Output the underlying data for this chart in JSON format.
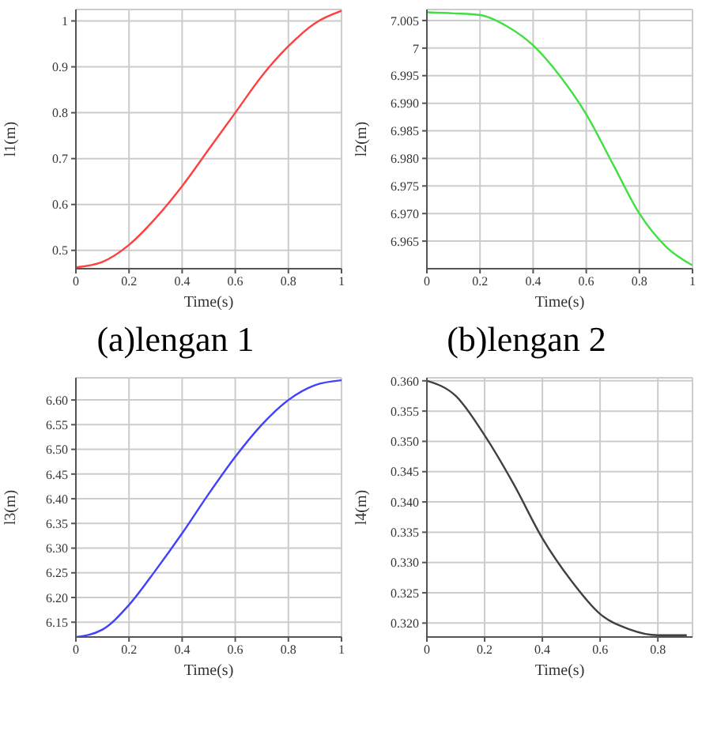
{
  "chart_data": [
    {
      "type": "line",
      "title": "(a)lengan 1",
      "xlabel": "Time(s)",
      "ylabel": "l1(m)",
      "x": [
        0,
        0.1,
        0.2,
        0.3,
        0.4,
        0.5,
        0.6,
        0.7,
        0.8,
        0.9,
        1
      ],
      "series": [
        {
          "color": "#ff4040",
          "values": [
            0.463,
            0.475,
            0.512,
            0.57,
            0.64,
            0.72,
            0.8,
            0.88,
            0.945,
            0.995,
            1.022
          ]
        }
      ],
      "xlim": [
        0,
        1
      ],
      "xticks": [
        0,
        0.2,
        0.4,
        0.6,
        0.8,
        1
      ],
      "ylim": [
        0.46,
        1.025
      ],
      "yticks": [
        0.5,
        0.6,
        0.7,
        0.8,
        0.9,
        1
      ],
      "grid": true
    },
    {
      "type": "line",
      "title": "(b)lengan 2",
      "xlabel": "Time(s)",
      "ylabel": "l2(m)",
      "x": [
        0,
        0.1,
        0.2,
        0.3,
        0.4,
        0.5,
        0.6,
        0.7,
        0.8,
        0.9,
        1
      ],
      "series": [
        {
          "color": "#40e040",
          "values": [
            7.0065,
            7.0063,
            7.006,
            7.004,
            7.0005,
            6.995,
            6.988,
            6.979,
            6.97,
            6.964,
            6.9606
          ]
        }
      ],
      "xlim": [
        0,
        1
      ],
      "xticks": [
        0,
        0.2,
        0.4,
        0.6,
        0.8,
        1
      ],
      "ylim": [
        6.96,
        7.007
      ],
      "yticks": [
        6.965,
        {
          "value": 6.97,
          "label": "6.970"
        },
        6.975,
        {
          "value": 6.98,
          "label": "6.980"
        },
        6.985,
        {
          "value": 6.99,
          "label": "6.990"
        },
        6.995,
        7,
        7.005
      ],
      "grid": true
    },
    {
      "type": "line",
      "xlabel": "Time(s)",
      "ylabel": "l3(m)",
      "x": [
        0,
        0.1,
        0.2,
        0.3,
        0.4,
        0.5,
        0.6,
        0.7,
        0.8,
        0.9,
        1
      ],
      "series": [
        {
          "color": "#4040ff",
          "values": [
            6.12,
            6.135,
            6.185,
            6.255,
            6.33,
            6.41,
            6.485,
            6.55,
            6.6,
            6.63,
            6.64
          ]
        }
      ],
      "xlim": [
        0,
        1
      ],
      "xticks": [
        0,
        0.2,
        0.4,
        0.6,
        0.8,
        1
      ],
      "ylim": [
        6.12,
        6.645
      ],
      "yticks": [
        6.15,
        {
          "value": 6.2,
          "label": "6.20"
        },
        6.25,
        {
          "value": 6.3,
          "label": "6.30"
        },
        6.35,
        {
          "value": 6.4,
          "label": "6.40"
        },
        6.45,
        {
          "value": 6.5,
          "label": "6.50"
        },
        6.55,
        {
          "value": 6.6,
          "label": "6.60"
        }
      ],
      "grid": true
    },
    {
      "type": "line",
      "xlabel": "Time(s)",
      "ylabel": "l4(m)",
      "x": [
        0,
        0.1,
        0.2,
        0.3,
        0.4,
        0.5,
        0.6,
        0.7,
        0.8,
        0.9
      ],
      "series": [
        {
          "color": "#404040",
          "values": [
            0.36,
            0.3575,
            0.351,
            0.343,
            0.334,
            0.327,
            0.3215,
            0.319,
            0.318,
            0.318
          ]
        }
      ],
      "xlim": [
        0,
        0.92
      ],
      "xticks": [
        0,
        0.2,
        0.4,
        0.6,
        0.8
      ],
      "ylim": [
        0.3177,
        0.3605
      ],
      "yticks": [
        {
          "value": 0.32,
          "label": "0.320"
        },
        0.325,
        {
          "value": 0.33,
          "label": "0.330"
        },
        0.335,
        {
          "value": 0.34,
          "label": "0.340"
        },
        0.345,
        {
          "value": 0.35,
          "label": "0.350"
        },
        0.355,
        {
          "value": 0.36,
          "label": "0.360"
        }
      ],
      "grid": true
    }
  ]
}
